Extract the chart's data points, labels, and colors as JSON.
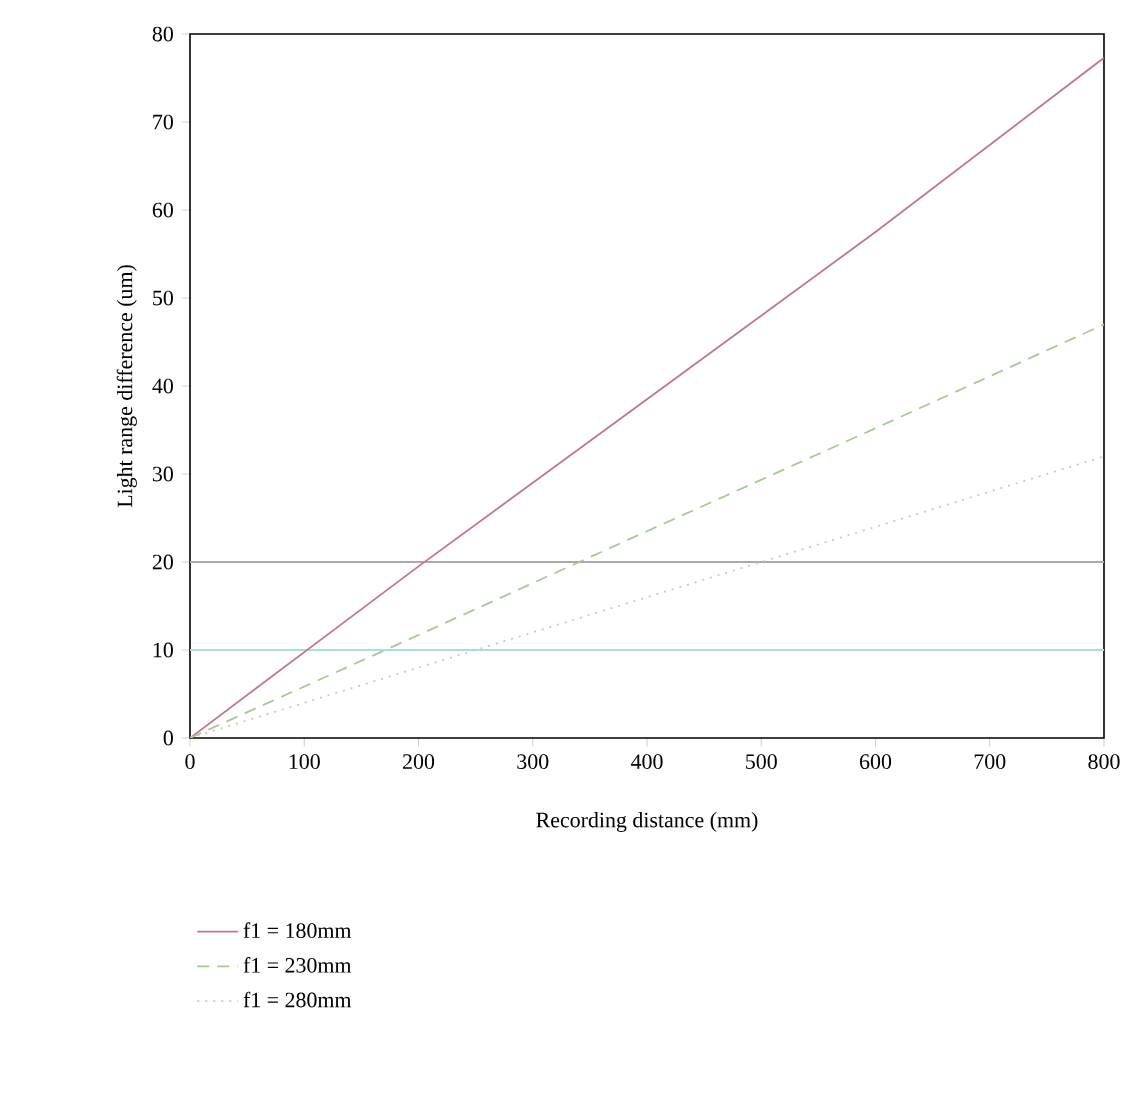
{
  "chart_data": {
    "type": "line",
    "xlabel": "Recording distance (mm)",
    "ylabel": "Light range difference (um)",
    "x": [
      0,
      200,
      400,
      600,
      800
    ],
    "series": [
      {
        "name": "f1 = 180mm",
        "color": "#c07888",
        "line_style": "solid",
        "values": [
          0,
          19.5,
          38.5,
          57.5,
          77.3
        ]
      },
      {
        "name": "f1 = 230mm",
        "color": "#a8c898",
        "line_style": "dashed",
        "values": [
          0,
          11.7,
          23.5,
          35.2,
          47
        ]
      },
      {
        "name": "f1 = 280mm",
        "color": "#c8c8c8",
        "line_style": "dotted",
        "values": [
          0,
          8,
          16,
          24,
          32
        ]
      }
    ],
    "ref_lines": [
      {
        "axis": "y",
        "value": 20,
        "color": "#b0a8a8"
      },
      {
        "axis": "y",
        "value": 10,
        "color": "#a8dfe0"
      }
    ],
    "xlim": [
      0,
      800
    ],
    "ylim": [
      0,
      80
    ],
    "xticks": [
      0,
      100,
      200,
      300,
      400,
      500,
      600,
      700,
      800
    ],
    "yticks": [
      0,
      10,
      20,
      30,
      40,
      50,
      60,
      70,
      80
    ],
    "grid": false,
    "legend": "bottom",
    "marker": "none"
  }
}
